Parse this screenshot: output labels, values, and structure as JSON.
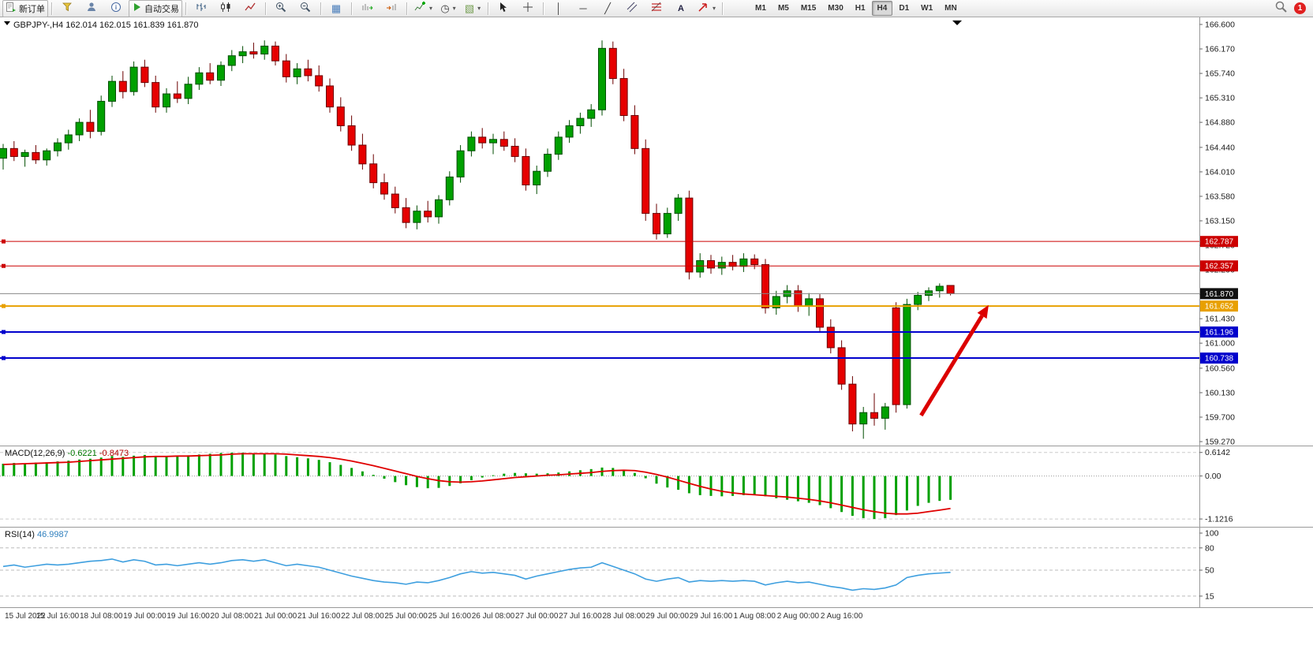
{
  "toolbar": {
    "new_order_label": "新订单",
    "autotrading_label": "自动交易",
    "text_tool_label": "A",
    "timeframes": [
      "M1",
      "M5",
      "M15",
      "M30",
      "H1",
      "H4",
      "D1",
      "W1",
      "MN"
    ],
    "active_timeframe": "H4",
    "notification_count": "1"
  },
  "chart": {
    "title": "GBPJPY-,H4",
    "ohlc": "162.014 162.015 161.839 161.870"
  },
  "colors": {
    "up": "#00a000",
    "up_border": "#004d00",
    "down": "#e60000",
    "down_border": "#6b0000",
    "macd_hist": "#00a000",
    "macd_signal": "#e00000",
    "rsi_line": "#3e9fdf",
    "arrow": "#dc0000",
    "axis_text": "#1a1a1a",
    "separator": "#999999",
    "current_line": "#888888",
    "current_box": "#111111"
  },
  "chart_data": {
    "type": "candlestick",
    "symbol": "GBPJPY-",
    "period": "H4",
    "current_ohlc": {
      "open": "162.014",
      "high": "162.015",
      "low": "161.839",
      "close": "161.870"
    },
    "ylim": [
      159.27,
      166.6
    ],
    "price_ticks": [
      "166.600",
      "166.170",
      "165.740",
      "165.310",
      "164.880",
      "164.440",
      "164.010",
      "163.580",
      "163.150",
      "162.720",
      "162.290",
      "161.860",
      "161.430",
      "161.000",
      "160.560",
      "160.130",
      "159.700",
      "159.270"
    ],
    "hlines": [
      {
        "price": 162.787,
        "label": "162.787",
        "color": "#cc0000",
        "width": 1,
        "style": "line"
      },
      {
        "price": 162.357,
        "label": "162.357",
        "color": "#cc0000",
        "width": 1,
        "style": "line"
      },
      {
        "price": 161.87,
        "label": "161.870",
        "color": "#111111",
        "width": 1,
        "style": "current"
      },
      {
        "price": 161.652,
        "label": "161.652",
        "color": "#e8a000",
        "width": 2,
        "style": "line"
      },
      {
        "price": 161.196,
        "label": "161.196",
        "color": "#0000cc",
        "width": 2,
        "style": "line"
      },
      {
        "price": 160.738,
        "label": "160.738",
        "color": "#0000cc",
        "width": 2,
        "style": "line"
      }
    ],
    "time_labels": [
      "15 Jul 2022",
      "15 Jul 16:00",
      "18 Jul 08:00",
      "19 Jul 00:00",
      "19 Jul 16:00",
      "20 Jul 08:00",
      "21 Jul 00:00",
      "21 Jul 16:00",
      "22 Jul 08:00",
      "25 Jul 00:00",
      "25 Jul 16:00",
      "26 Jul 08:00",
      "27 Jul 00:00",
      "27 Jul 16:00",
      "28 Jul 08:00",
      "29 Jul 00:00",
      "29 Jul 16:00",
      "1 Aug 08:00",
      "2 Aug 00:00",
      "2 Aug 16:00"
    ],
    "candles": [
      [
        164.25,
        164.5,
        164.05,
        164.42
      ],
      [
        164.42,
        164.55,
        164.2,
        164.28
      ],
      [
        164.28,
        164.4,
        164.1,
        164.35
      ],
      [
        164.35,
        164.48,
        164.15,
        164.22
      ],
      [
        164.22,
        164.42,
        164.12,
        164.38
      ],
      [
        164.38,
        164.6,
        164.28,
        164.52
      ],
      [
        164.52,
        164.75,
        164.4,
        164.66
      ],
      [
        164.66,
        164.95,
        164.55,
        164.88
      ],
      [
        164.88,
        165.1,
        164.6,
        164.72
      ],
      [
        164.72,
        165.35,
        164.65,
        165.25
      ],
      [
        165.25,
        165.7,
        165.15,
        165.6
      ],
      [
        165.6,
        165.78,
        165.3,
        165.42
      ],
      [
        165.42,
        165.95,
        165.35,
        165.85
      ],
      [
        165.85,
        165.98,
        165.5,
        165.58
      ],
      [
        165.58,
        165.7,
        165.05,
        165.15
      ],
      [
        165.15,
        165.48,
        165.05,
        165.38
      ],
      [
        165.38,
        165.6,
        165.22,
        165.3
      ],
      [
        165.3,
        165.68,
        165.2,
        165.55
      ],
      [
        165.55,
        165.85,
        165.45,
        165.75
      ],
      [
        165.75,
        165.92,
        165.55,
        165.62
      ],
      [
        165.62,
        165.95,
        165.52,
        165.88
      ],
      [
        165.88,
        166.15,
        165.78,
        166.05
      ],
      [
        166.05,
        166.22,
        165.92,
        166.12
      ],
      [
        166.12,
        166.28,
        166.0,
        166.08
      ],
      [
        166.08,
        166.32,
        165.98,
        166.22
      ],
      [
        166.22,
        166.3,
        165.88,
        165.96
      ],
      [
        165.96,
        166.08,
        165.58,
        165.68
      ],
      [
        165.68,
        165.92,
        165.55,
        165.82
      ],
      [
        165.82,
        165.98,
        165.6,
        165.7
      ],
      [
        165.7,
        165.88,
        165.42,
        165.52
      ],
      [
        165.52,
        165.65,
        165.05,
        165.15
      ],
      [
        165.15,
        165.32,
        164.72,
        164.82
      ],
      [
        164.82,
        165.0,
        164.38,
        164.48
      ],
      [
        164.48,
        164.68,
        164.05,
        164.15
      ],
      [
        164.15,
        164.32,
        163.72,
        163.82
      ],
      [
        163.82,
        163.98,
        163.52,
        163.62
      ],
      [
        163.62,
        163.75,
        163.28,
        163.38
      ],
      [
        163.38,
        163.55,
        163.02,
        163.12
      ],
      [
        163.12,
        163.42,
        163.0,
        163.32
      ],
      [
        163.32,
        163.5,
        163.12,
        163.22
      ],
      [
        163.22,
        163.6,
        163.1,
        163.52
      ],
      [
        163.52,
        164.02,
        163.42,
        163.92
      ],
      [
        163.92,
        164.48,
        163.82,
        164.38
      ],
      [
        164.38,
        164.72,
        164.28,
        164.62
      ],
      [
        164.62,
        164.78,
        164.42,
        164.52
      ],
      [
        164.52,
        164.68,
        164.32,
        164.58
      ],
      [
        164.58,
        164.72,
        164.38,
        164.46
      ],
      [
        164.46,
        164.6,
        164.18,
        164.28
      ],
      [
        164.28,
        164.42,
        163.68,
        163.78
      ],
      [
        163.78,
        164.12,
        163.62,
        164.02
      ],
      [
        164.02,
        164.42,
        163.92,
        164.32
      ],
      [
        164.32,
        164.72,
        164.22,
        164.62
      ],
      [
        164.62,
        164.92,
        164.52,
        164.82
      ],
      [
        164.82,
        165.05,
        164.68,
        164.95
      ],
      [
        164.95,
        165.2,
        164.8,
        165.1
      ],
      [
        165.1,
        166.32,
        165.0,
        166.18
      ],
      [
        166.18,
        166.3,
        165.55,
        165.65
      ],
      [
        165.65,
        165.82,
        164.9,
        165.0
      ],
      [
        165.0,
        165.18,
        164.32,
        164.42
      ],
      [
        164.42,
        164.58,
        163.15,
        163.28
      ],
      [
        163.28,
        163.45,
        162.82,
        162.92
      ],
      [
        162.92,
        163.38,
        162.85,
        163.28
      ],
      [
        163.28,
        163.62,
        163.15,
        163.55
      ],
      [
        163.55,
        163.68,
        162.12,
        162.25
      ],
      [
        162.25,
        162.58,
        162.15,
        162.45
      ],
      [
        162.45,
        162.55,
        162.22,
        162.32
      ],
      [
        162.32,
        162.52,
        162.2,
        162.42
      ],
      [
        162.42,
        162.55,
        162.28,
        162.35
      ],
      [
        162.35,
        162.58,
        162.25,
        162.48
      ],
      [
        162.48,
        162.56,
        162.3,
        162.38
      ],
      [
        162.38,
        162.48,
        161.52,
        161.62
      ],
      [
        161.62,
        161.92,
        161.5,
        161.82
      ],
      [
        161.82,
        162.02,
        161.7,
        161.92
      ],
      [
        161.92,
        162.02,
        161.55,
        161.65
      ],
      [
        161.65,
        161.88,
        161.48,
        161.78
      ],
      [
        161.78,
        161.86,
        161.18,
        161.28
      ],
      [
        161.28,
        161.42,
        160.82,
        160.92
      ],
      [
        160.92,
        161.05,
        160.18,
        160.28
      ],
      [
        160.28,
        160.42,
        159.45,
        159.58
      ],
      [
        159.58,
        159.88,
        159.32,
        159.78
      ],
      [
        159.78,
        160.12,
        159.55,
        159.68
      ],
      [
        159.68,
        159.95,
        159.48,
        159.88
      ],
      [
        161.62,
        161.72,
        159.78,
        159.92
      ],
      [
        159.92,
        161.78,
        159.85,
        161.68
      ],
      [
        161.68,
        161.9,
        161.58,
        161.84
      ],
      [
        161.84,
        161.98,
        161.74,
        161.92
      ],
      [
        161.92,
        162.05,
        161.8,
        162.0
      ],
      [
        162.014,
        162.015,
        161.839,
        161.87
      ]
    ],
    "indicators": {
      "macd": {
        "label": "MACD(12,26,9)",
        "main_value": "-0.6221",
        "signal_value": "-0.8473",
        "axis": [
          "0.6142",
          "0.00",
          "-1.1216"
        ],
        "values": [
          0.32,
          0.34,
          0.33,
          0.35,
          0.36,
          0.38,
          0.4,
          0.43,
          0.45,
          0.48,
          0.52,
          0.5,
          0.53,
          0.55,
          0.52,
          0.51,
          0.52,
          0.54,
          0.56,
          0.58,
          0.6,
          0.61,
          0.61,
          0.6,
          0.59,
          0.56,
          0.52,
          0.49,
          0.46,
          0.42,
          0.36,
          0.29,
          0.21,
          0.12,
          0.03,
          -0.07,
          -0.16,
          -0.24,
          -0.29,
          -0.32,
          -0.31,
          -0.26,
          -0.19,
          -0.11,
          -0.04,
          0.02,
          0.06,
          0.08,
          0.07,
          0.06,
          0.07,
          0.09,
          0.12,
          0.15,
          0.18,
          0.22,
          0.21,
          0.16,
          0.08,
          -0.06,
          -0.2,
          -0.3,
          -0.36,
          -0.45,
          -0.5,
          -0.52,
          -0.53,
          -0.52,
          -0.5,
          -0.49,
          -0.53,
          -0.58,
          -0.62,
          -0.66,
          -0.7,
          -0.76,
          -0.84,
          -0.94,
          -1.04,
          -1.1,
          -1.12,
          -1.1,
          -1.02,
          -0.9,
          -0.78,
          -0.7,
          -0.65,
          -0.6221
        ],
        "signal": [
          0.3,
          0.31,
          0.32,
          0.33,
          0.34,
          0.35,
          0.36,
          0.38,
          0.4,
          0.42,
          0.44,
          0.46,
          0.48,
          0.5,
          0.51,
          0.51,
          0.52,
          0.52,
          0.53,
          0.54,
          0.55,
          0.57,
          0.58,
          0.58,
          0.58,
          0.58,
          0.57,
          0.55,
          0.53,
          0.51,
          0.48,
          0.44,
          0.39,
          0.33,
          0.27,
          0.2,
          0.13,
          0.06,
          -0.01,
          -0.07,
          -0.12,
          -0.15,
          -0.16,
          -0.15,
          -0.13,
          -0.1,
          -0.07,
          -0.04,
          -0.02,
          0.0,
          0.02,
          0.03,
          0.05,
          0.07,
          0.09,
          0.12,
          0.14,
          0.15,
          0.14,
          0.1,
          0.04,
          -0.03,
          -0.11,
          -0.19,
          -0.27,
          -0.34,
          -0.4,
          -0.44,
          -0.47,
          -0.49,
          -0.51,
          -0.53,
          -0.55,
          -0.58,
          -0.61,
          -0.65,
          -0.7,
          -0.76,
          -0.82,
          -0.88,
          -0.93,
          -0.97,
          -0.99,
          -0.99,
          -0.97,
          -0.93,
          -0.89,
          -0.8473
        ]
      },
      "rsi": {
        "label": "RSI(14)",
        "value": "46.9987",
        "levels": [
          "100",
          "80",
          "50",
          "15"
        ],
        "values": [
          55,
          57,
          54,
          56,
          58,
          57,
          58,
          60,
          62,
          63,
          65,
          61,
          64,
          62,
          57,
          58,
          56,
          58,
          60,
          58,
          60,
          63,
          64,
          62,
          64,
          60,
          56,
          58,
          56,
          54,
          50,
          46,
          42,
          39,
          36,
          34,
          33,
          31,
          34,
          33,
          36,
          40,
          45,
          48,
          46,
          47,
          45,
          43,
          38,
          42,
          45,
          48,
          51,
          53,
          54,
          60,
          55,
          50,
          45,
          38,
          35,
          38,
          40,
          34,
          36,
          35,
          36,
          35,
          36,
          35,
          30,
          33,
          35,
          33,
          34,
          31,
          28,
          26,
          23,
          25,
          24,
          26,
          30,
          40,
          43,
          45,
          46,
          46.9987
        ]
      }
    },
    "annotations": [
      {
        "type": "arrow",
        "color": "#dc0000",
        "from": {
          "bar": 84.3,
          "price": 159.73
        },
        "to": {
          "bar": 90.5,
          "price": 161.67
        }
      }
    ]
  }
}
